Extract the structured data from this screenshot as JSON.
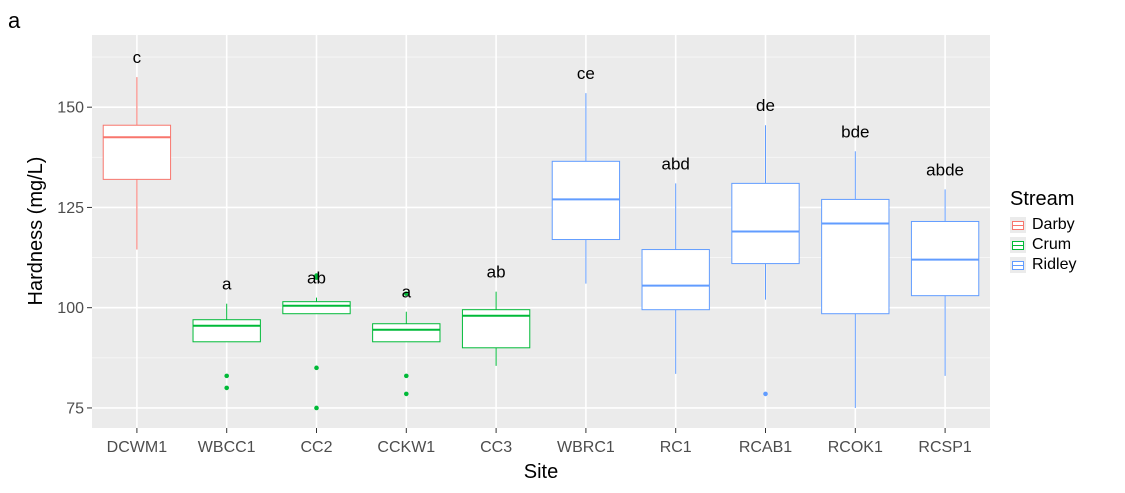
{
  "panel_label": "a",
  "chart_data": {
    "type": "boxplot",
    "title": "",
    "xlabel": "Site",
    "ylabel": "Hardness (mg/L)",
    "ylim": [
      70,
      168
    ],
    "yticks": [
      75,
      100,
      125,
      150
    ],
    "grid": true,
    "legend": {
      "title": "Stream",
      "placement": "right",
      "entries": [
        {
          "name": "Darby",
          "color": "#F8766D"
        },
        {
          "name": "Crum",
          "color": "#00BA38"
        },
        {
          "name": "Ridley",
          "color": "#619CFF"
        }
      ]
    },
    "categories": [
      "DCWM1",
      "WBCC1",
      "CC2",
      "CCKW1",
      "CC3",
      "WBRC1",
      "RC1",
      "RCAB1",
      "RCOK1",
      "RCSP1"
    ],
    "boxes": [
      {
        "site": "DCWM1",
        "stream": "Darby",
        "min": 114.5,
        "q1": 132,
        "median": 142.5,
        "q3": 145.5,
        "max": 157.5,
        "outliers": [],
        "letter": "c"
      },
      {
        "site": "WBCC1",
        "stream": "Crum",
        "min": 91.5,
        "q1": 91.5,
        "median": 95.5,
        "q3": 97,
        "max": 101,
        "outliers": [
          83,
          80
        ],
        "letter": "a"
      },
      {
        "site": "CC2",
        "stream": "Crum",
        "min": 98.5,
        "q1": 98.5,
        "median": 100.5,
        "q3": 101.5,
        "max": 102.5,
        "outliers": [
          108,
          107.5,
          85,
          75
        ],
        "letter": "ab"
      },
      {
        "site": "CCKW1",
        "stream": "Crum",
        "min": 91.5,
        "q1": 91.5,
        "median": 94.5,
        "q3": 96,
        "max": 99,
        "outliers": [
          103.5,
          83,
          78.5
        ],
        "letter": "a"
      },
      {
        "site": "CC3",
        "stream": "Crum",
        "min": 85.5,
        "q1": 90,
        "median": 98,
        "q3": 99.5,
        "max": 104,
        "outliers": [],
        "letter": "ab"
      },
      {
        "site": "WBRC1",
        "stream": "Ridley",
        "min": 106,
        "q1": 117,
        "median": 127,
        "q3": 136.5,
        "max": 153.5,
        "outliers": [],
        "letter": "ce"
      },
      {
        "site": "RC1",
        "stream": "Ridley",
        "min": 83.5,
        "q1": 99.5,
        "median": 105.5,
        "q3": 114.5,
        "max": 131,
        "outliers": [],
        "letter": "abd"
      },
      {
        "site": "RCAB1",
        "stream": "Ridley",
        "min": 102,
        "q1": 111,
        "median": 119,
        "q3": 131,
        "max": 145.5,
        "outliers": [
          78.5
        ],
        "letter": "de"
      },
      {
        "site": "RCOK1",
        "stream": "Ridley",
        "min": 75,
        "q1": 98.5,
        "median": 121,
        "q3": 127,
        "max": 139,
        "outliers": [],
        "letter": "bde"
      },
      {
        "site": "RCSP1",
        "stream": "Ridley",
        "min": 83,
        "q1": 103,
        "median": 112,
        "q3": 121.5,
        "max": 129.5,
        "outliers": [],
        "letter": "abde"
      }
    ]
  }
}
